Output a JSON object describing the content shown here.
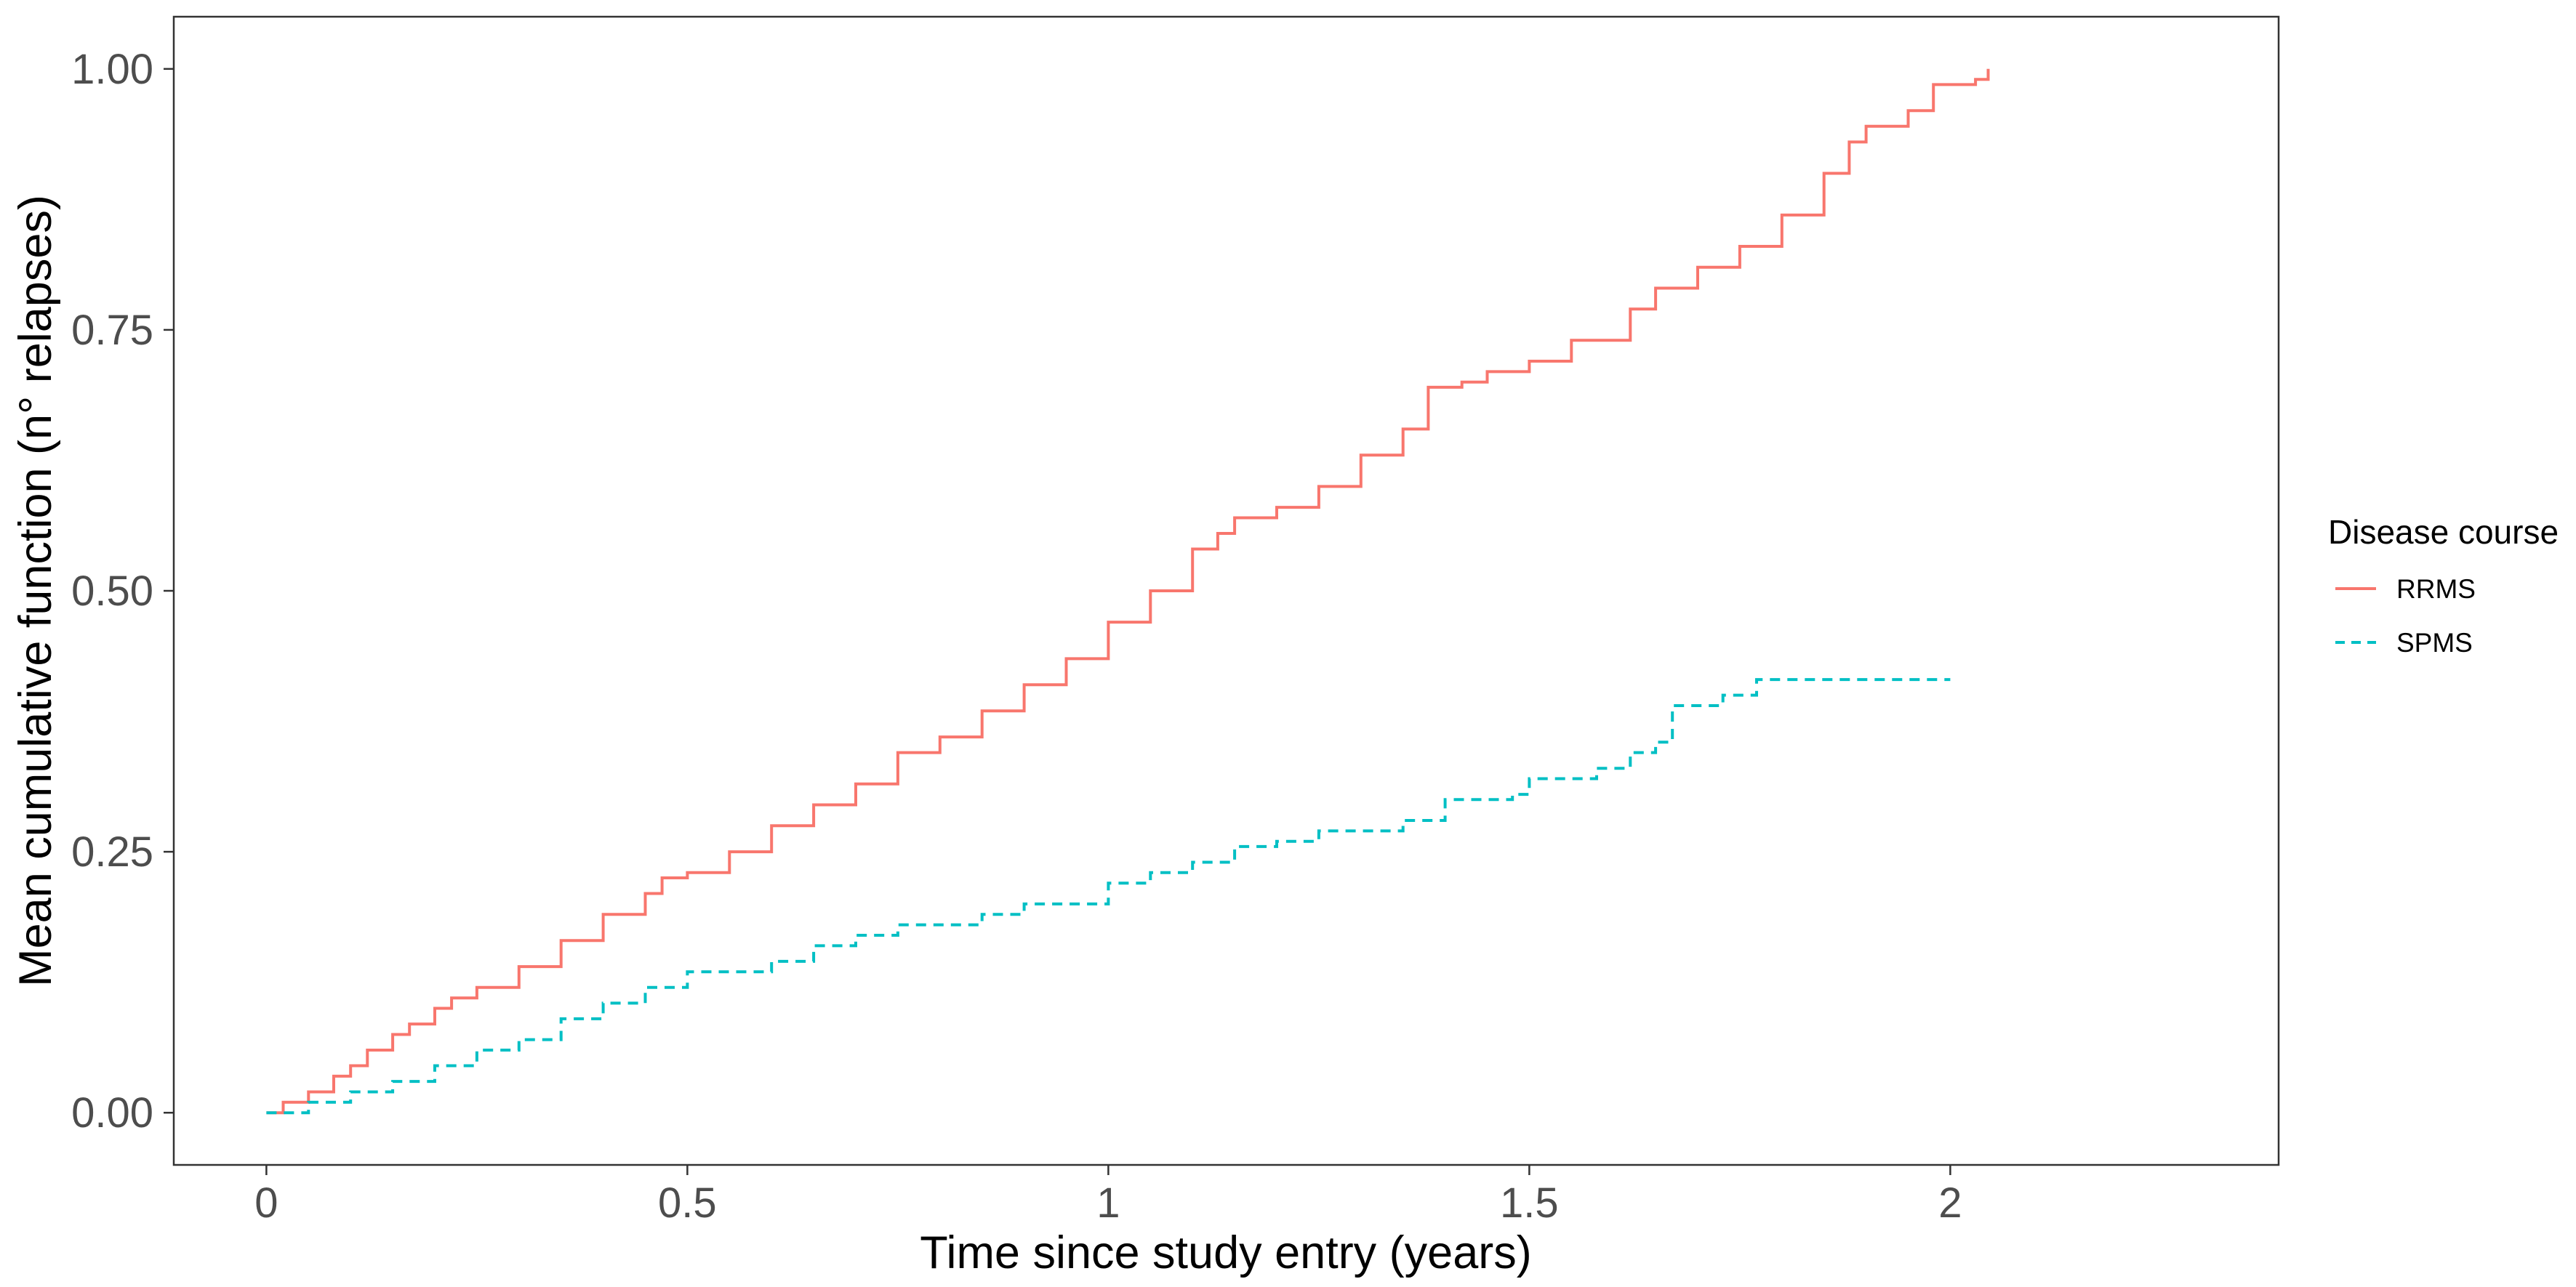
{
  "chart_data": {
    "type": "line",
    "step": true,
    "xlabel": "Time since study entry (years)",
    "ylabel": "Mean cumulative function (n° relapses)",
    "xlim": [
      -0.11,
      2.39
    ],
    "ylim": [
      -0.05,
      1.05
    ],
    "x_ticks": [
      {
        "value": 0,
        "label": "0"
      },
      {
        "value": 0.5,
        "label": "0.5"
      },
      {
        "value": 1,
        "label": "1"
      },
      {
        "value": 1.5,
        "label": "1.5"
      },
      {
        "value": 2,
        "label": "2"
      }
    ],
    "y_ticks": [
      {
        "value": 0,
        "label": "0.00"
      },
      {
        "value": 0.25,
        "label": "0.25"
      },
      {
        "value": 0.5,
        "label": "0.50"
      },
      {
        "value": 0.75,
        "label": "0.75"
      },
      {
        "value": 1,
        "label": "1.00"
      }
    ],
    "grid": false,
    "legend": {
      "title": "Disease course",
      "position": "right"
    },
    "series": [
      {
        "name": "RRMS",
        "color": "#F8766D",
        "dash": "solid",
        "points": [
          [
            0,
            0
          ],
          [
            0.02,
            0.01
          ],
          [
            0.05,
            0.02
          ],
          [
            0.08,
            0.035
          ],
          [
            0.1,
            0.045
          ],
          [
            0.12,
            0.06
          ],
          [
            0.15,
            0.075
          ],
          [
            0.17,
            0.085
          ],
          [
            0.2,
            0.1
          ],
          [
            0.22,
            0.11
          ],
          [
            0.25,
            0.12
          ],
          [
            0.3,
            0.14
          ],
          [
            0.35,
            0.165
          ],
          [
            0.4,
            0.19
          ],
          [
            0.45,
            0.21
          ],
          [
            0.47,
            0.225
          ],
          [
            0.5,
            0.23
          ],
          [
            0.55,
            0.25
          ],
          [
            0.6,
            0.275
          ],
          [
            0.65,
            0.295
          ],
          [
            0.7,
            0.315
          ],
          [
            0.75,
            0.345
          ],
          [
            0.8,
            0.36
          ],
          [
            0.85,
            0.385
          ],
          [
            0.9,
            0.41
          ],
          [
            0.95,
            0.435
          ],
          [
            1.0,
            0.47
          ],
          [
            1.05,
            0.5
          ],
          [
            1.1,
            0.54
          ],
          [
            1.13,
            0.555
          ],
          [
            1.15,
            0.57
          ],
          [
            1.2,
            0.58
          ],
          [
            1.25,
            0.6
          ],
          [
            1.3,
            0.63
          ],
          [
            1.35,
            0.655
          ],
          [
            1.38,
            0.695
          ],
          [
            1.42,
            0.7
          ],
          [
            1.45,
            0.71
          ],
          [
            1.5,
            0.72
          ],
          [
            1.55,
            0.74
          ],
          [
            1.6,
            0.74
          ],
          [
            1.62,
            0.77
          ],
          [
            1.65,
            0.79
          ],
          [
            1.7,
            0.81
          ],
          [
            1.75,
            0.83
          ],
          [
            1.8,
            0.86
          ],
          [
            1.85,
            0.9
          ],
          [
            1.88,
            0.93
          ],
          [
            1.9,
            0.945
          ],
          [
            1.95,
            0.96
          ],
          [
            1.98,
            0.985
          ],
          [
            2.03,
            0.99
          ],
          [
            2.045,
            1.0
          ]
        ]
      },
      {
        "name": "SPMS",
        "color": "#00BFC4",
        "dash": "dashed",
        "points": [
          [
            0,
            0
          ],
          [
            0.05,
            0.01
          ],
          [
            0.1,
            0.02
          ],
          [
            0.15,
            0.03
          ],
          [
            0.2,
            0.045
          ],
          [
            0.25,
            0.06
          ],
          [
            0.3,
            0.07
          ],
          [
            0.35,
            0.09
          ],
          [
            0.4,
            0.105
          ],
          [
            0.45,
            0.12
          ],
          [
            0.5,
            0.135
          ],
          [
            0.6,
            0.145
          ],
          [
            0.65,
            0.16
          ],
          [
            0.7,
            0.17
          ],
          [
            0.75,
            0.18
          ],
          [
            0.85,
            0.19
          ],
          [
            0.9,
            0.2
          ],
          [
            1.0,
            0.22
          ],
          [
            1.05,
            0.23
          ],
          [
            1.1,
            0.24
          ],
          [
            1.15,
            0.255
          ],
          [
            1.2,
            0.26
          ],
          [
            1.25,
            0.27
          ],
          [
            1.35,
            0.28
          ],
          [
            1.4,
            0.3
          ],
          [
            1.48,
            0.305
          ],
          [
            1.5,
            0.32
          ],
          [
            1.58,
            0.33
          ],
          [
            1.62,
            0.345
          ],
          [
            1.65,
            0.355
          ],
          [
            1.67,
            0.39
          ],
          [
            1.73,
            0.4
          ],
          [
            1.77,
            0.415
          ],
          [
            2.0,
            0.415
          ]
        ]
      }
    ]
  }
}
